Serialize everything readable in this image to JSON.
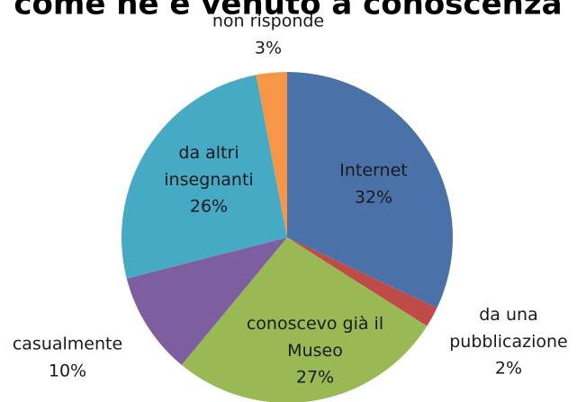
{
  "chart_data": {
    "type": "pie",
    "title": "come ne è venuto a conoscenza",
    "categories": [
      "Internet",
      "da una pubblicazione",
      "conoscevo già il Museo",
      "casualmente",
      "da altri insegnanti",
      "non risponde"
    ],
    "values": [
      32,
      2,
      27,
      10,
      26,
      3
    ],
    "value_labels": [
      "32%",
      "2%",
      "27%",
      "10%",
      "26%",
      "3%"
    ],
    "colors": [
      "#4a72a8",
      "#be4b48",
      "#98b954",
      "#7d5fa0",
      "#46aac5",
      "#f79646"
    ]
  }
}
